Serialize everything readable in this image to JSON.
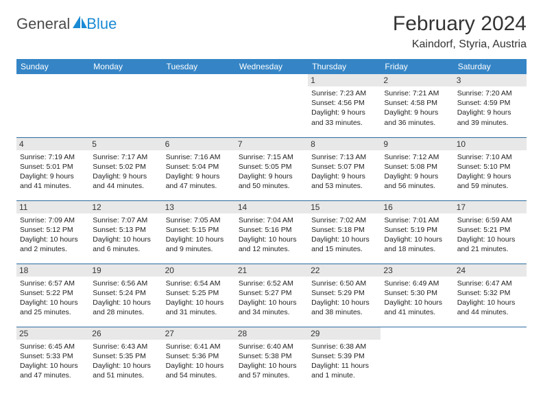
{
  "brand": {
    "general": "General",
    "blue": "Blue",
    "logo_color": "#1a8ad4"
  },
  "title": "February 2024",
  "location": "Kaindorf, Styria, Austria",
  "day_headers": [
    "Sunday",
    "Monday",
    "Tuesday",
    "Wednesday",
    "Thursday",
    "Friday",
    "Saturday"
  ],
  "colors": {
    "header_bg": "#3585c6",
    "header_text": "#ffffff",
    "day_bg": "#e8e8e8",
    "border": "#2a6a9e"
  },
  "weeks": [
    [
      null,
      null,
      null,
      null,
      {
        "day": "1",
        "sunrise": "Sunrise: 7:23 AM",
        "sunset": "Sunset: 4:56 PM",
        "daylight1": "Daylight: 9 hours",
        "daylight2": "and 33 minutes."
      },
      {
        "day": "2",
        "sunrise": "Sunrise: 7:21 AM",
        "sunset": "Sunset: 4:58 PM",
        "daylight1": "Daylight: 9 hours",
        "daylight2": "and 36 minutes."
      },
      {
        "day": "3",
        "sunrise": "Sunrise: 7:20 AM",
        "sunset": "Sunset: 4:59 PM",
        "daylight1": "Daylight: 9 hours",
        "daylight2": "and 39 minutes."
      }
    ],
    [
      {
        "day": "4",
        "sunrise": "Sunrise: 7:19 AM",
        "sunset": "Sunset: 5:01 PM",
        "daylight1": "Daylight: 9 hours",
        "daylight2": "and 41 minutes."
      },
      {
        "day": "5",
        "sunrise": "Sunrise: 7:17 AM",
        "sunset": "Sunset: 5:02 PM",
        "daylight1": "Daylight: 9 hours",
        "daylight2": "and 44 minutes."
      },
      {
        "day": "6",
        "sunrise": "Sunrise: 7:16 AM",
        "sunset": "Sunset: 5:04 PM",
        "daylight1": "Daylight: 9 hours",
        "daylight2": "and 47 minutes."
      },
      {
        "day": "7",
        "sunrise": "Sunrise: 7:15 AM",
        "sunset": "Sunset: 5:05 PM",
        "daylight1": "Daylight: 9 hours",
        "daylight2": "and 50 minutes."
      },
      {
        "day": "8",
        "sunrise": "Sunrise: 7:13 AM",
        "sunset": "Sunset: 5:07 PM",
        "daylight1": "Daylight: 9 hours",
        "daylight2": "and 53 minutes."
      },
      {
        "day": "9",
        "sunrise": "Sunrise: 7:12 AM",
        "sunset": "Sunset: 5:08 PM",
        "daylight1": "Daylight: 9 hours",
        "daylight2": "and 56 minutes."
      },
      {
        "day": "10",
        "sunrise": "Sunrise: 7:10 AM",
        "sunset": "Sunset: 5:10 PM",
        "daylight1": "Daylight: 9 hours",
        "daylight2": "and 59 minutes."
      }
    ],
    [
      {
        "day": "11",
        "sunrise": "Sunrise: 7:09 AM",
        "sunset": "Sunset: 5:12 PM",
        "daylight1": "Daylight: 10 hours",
        "daylight2": "and 2 minutes."
      },
      {
        "day": "12",
        "sunrise": "Sunrise: 7:07 AM",
        "sunset": "Sunset: 5:13 PM",
        "daylight1": "Daylight: 10 hours",
        "daylight2": "and 6 minutes."
      },
      {
        "day": "13",
        "sunrise": "Sunrise: 7:05 AM",
        "sunset": "Sunset: 5:15 PM",
        "daylight1": "Daylight: 10 hours",
        "daylight2": "and 9 minutes."
      },
      {
        "day": "14",
        "sunrise": "Sunrise: 7:04 AM",
        "sunset": "Sunset: 5:16 PM",
        "daylight1": "Daylight: 10 hours",
        "daylight2": "and 12 minutes."
      },
      {
        "day": "15",
        "sunrise": "Sunrise: 7:02 AM",
        "sunset": "Sunset: 5:18 PM",
        "daylight1": "Daylight: 10 hours",
        "daylight2": "and 15 minutes."
      },
      {
        "day": "16",
        "sunrise": "Sunrise: 7:01 AM",
        "sunset": "Sunset: 5:19 PM",
        "daylight1": "Daylight: 10 hours",
        "daylight2": "and 18 minutes."
      },
      {
        "day": "17",
        "sunrise": "Sunrise: 6:59 AM",
        "sunset": "Sunset: 5:21 PM",
        "daylight1": "Daylight: 10 hours",
        "daylight2": "and 21 minutes."
      }
    ],
    [
      {
        "day": "18",
        "sunrise": "Sunrise: 6:57 AM",
        "sunset": "Sunset: 5:22 PM",
        "daylight1": "Daylight: 10 hours",
        "daylight2": "and 25 minutes."
      },
      {
        "day": "19",
        "sunrise": "Sunrise: 6:56 AM",
        "sunset": "Sunset: 5:24 PM",
        "daylight1": "Daylight: 10 hours",
        "daylight2": "and 28 minutes."
      },
      {
        "day": "20",
        "sunrise": "Sunrise: 6:54 AM",
        "sunset": "Sunset: 5:25 PM",
        "daylight1": "Daylight: 10 hours",
        "daylight2": "and 31 minutes."
      },
      {
        "day": "21",
        "sunrise": "Sunrise: 6:52 AM",
        "sunset": "Sunset: 5:27 PM",
        "daylight1": "Daylight: 10 hours",
        "daylight2": "and 34 minutes."
      },
      {
        "day": "22",
        "sunrise": "Sunrise: 6:50 AM",
        "sunset": "Sunset: 5:29 PM",
        "daylight1": "Daylight: 10 hours",
        "daylight2": "and 38 minutes."
      },
      {
        "day": "23",
        "sunrise": "Sunrise: 6:49 AM",
        "sunset": "Sunset: 5:30 PM",
        "daylight1": "Daylight: 10 hours",
        "daylight2": "and 41 minutes."
      },
      {
        "day": "24",
        "sunrise": "Sunrise: 6:47 AM",
        "sunset": "Sunset: 5:32 PM",
        "daylight1": "Daylight: 10 hours",
        "daylight2": "and 44 minutes."
      }
    ],
    [
      {
        "day": "25",
        "sunrise": "Sunrise: 6:45 AM",
        "sunset": "Sunset: 5:33 PM",
        "daylight1": "Daylight: 10 hours",
        "daylight2": "and 47 minutes."
      },
      {
        "day": "26",
        "sunrise": "Sunrise: 6:43 AM",
        "sunset": "Sunset: 5:35 PM",
        "daylight1": "Daylight: 10 hours",
        "daylight2": "and 51 minutes."
      },
      {
        "day": "27",
        "sunrise": "Sunrise: 6:41 AM",
        "sunset": "Sunset: 5:36 PM",
        "daylight1": "Daylight: 10 hours",
        "daylight2": "and 54 minutes."
      },
      {
        "day": "28",
        "sunrise": "Sunrise: 6:40 AM",
        "sunset": "Sunset: 5:38 PM",
        "daylight1": "Daylight: 10 hours",
        "daylight2": "and 57 minutes."
      },
      {
        "day": "29",
        "sunrise": "Sunrise: 6:38 AM",
        "sunset": "Sunset: 5:39 PM",
        "daylight1": "Daylight: 11 hours",
        "daylight2": "and 1 minute."
      },
      null,
      null
    ]
  ]
}
